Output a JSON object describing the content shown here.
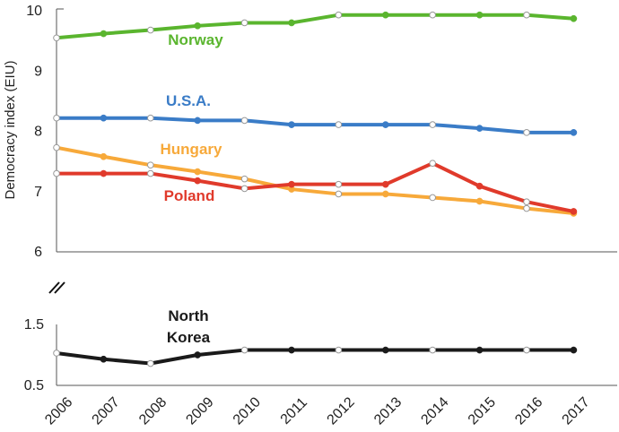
{
  "chart_data": {
    "type": "line",
    "ylabel": "Democracy index (EIU)",
    "x": [
      "2006",
      "2007",
      "2008",
      "2009",
      "2010",
      "2011",
      "2012",
      "2013",
      "2014",
      "2015",
      "2016",
      "2017"
    ],
    "ylim_upper": [
      6,
      10
    ],
    "ylim_lower": [
      0.5,
      1.5
    ],
    "yticks_upper": [
      "10",
      "9",
      "8",
      "7",
      "6"
    ],
    "yticks_lower": [
      "1.5",
      "0.5"
    ],
    "grid": false,
    "axis_break": true,
    "series": [
      {
        "name": "Norway",
        "color": "#5ab52e",
        "panel": "upper",
        "values": [
          9.55,
          9.62,
          9.68,
          9.75,
          9.8,
          9.8,
          9.93,
          9.93,
          9.93,
          9.93,
          9.93,
          9.87
        ]
      },
      {
        "name": "U.S.A.",
        "color": "#3a7cc7",
        "panel": "upper",
        "values": [
          8.22,
          8.22,
          8.22,
          8.18,
          8.18,
          8.11,
          8.11,
          8.11,
          8.11,
          8.05,
          7.98,
          7.98
        ]
      },
      {
        "name": "Hungary",
        "color": "#f7a93a",
        "panel": "upper",
        "values": [
          7.73,
          7.58,
          7.44,
          7.33,
          7.21,
          7.04,
          6.96,
          6.96,
          6.9,
          6.84,
          6.72,
          6.64
        ]
      },
      {
        "name": "Poland",
        "color": "#e03a2b",
        "panel": "upper",
        "values": [
          7.3,
          7.3,
          7.3,
          7.18,
          7.05,
          7.12,
          7.12,
          7.12,
          7.47,
          7.09,
          6.83,
          6.67
        ]
      },
      {
        "name": "North Korea",
        "label_lines": [
          "North",
          "Korea"
        ],
        "color": "#1a1a1a",
        "panel": "lower",
        "values": [
          1.03,
          0.93,
          0.86,
          1.0,
          1.08,
          1.08,
          1.08,
          1.08,
          1.08,
          1.08,
          1.08,
          1.08
        ]
      }
    ]
  }
}
